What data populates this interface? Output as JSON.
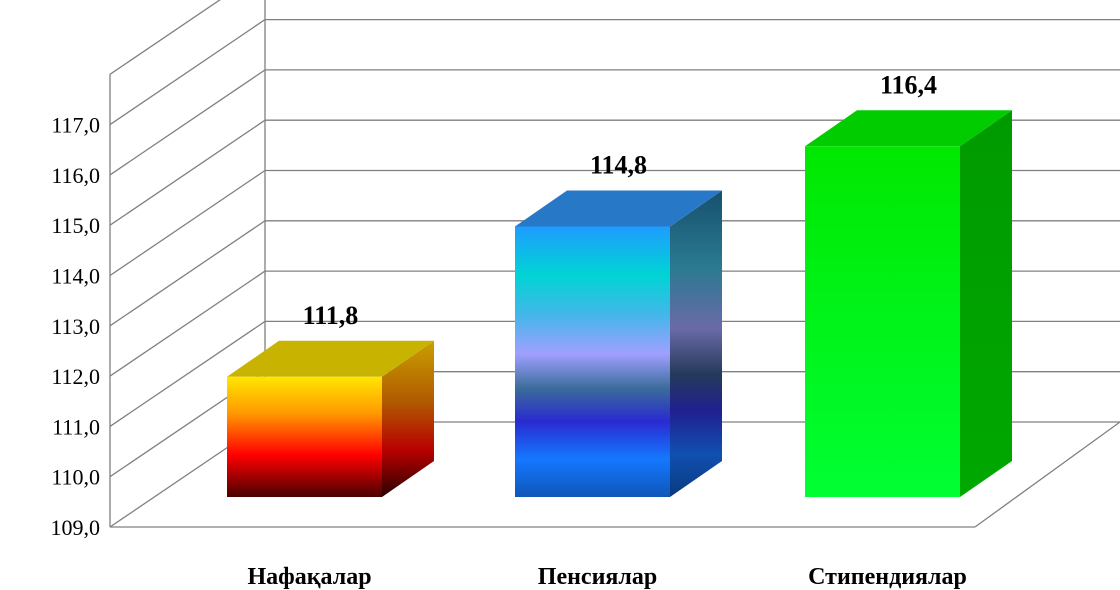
{
  "chart_data": {
    "type": "bar",
    "style": "3d-column",
    "categories": [
      "Нафақалар",
      "Пенсиялар",
      "Стипендиялар"
    ],
    "values": [
      111.8,
      114.8,
      116.4
    ],
    "value_labels": [
      "111,8",
      "114,8",
      "116,4"
    ],
    "ylim": [
      109,
      118
    ],
    "y_ticks": [
      109,
      110,
      111,
      112,
      113,
      114,
      115,
      116,
      117
    ],
    "y_tick_labels": [
      "109,0",
      "110,0",
      "111,0",
      "112,0",
      "113,0",
      "114,0",
      "115,0",
      "116,0",
      "117,0"
    ],
    "title": "",
    "xlabel": "",
    "ylabel": "",
    "grid": true,
    "legend": "none",
    "bar_colors": [
      "#ffd700",
      "#1e90ff",
      "#00e600"
    ]
  }
}
